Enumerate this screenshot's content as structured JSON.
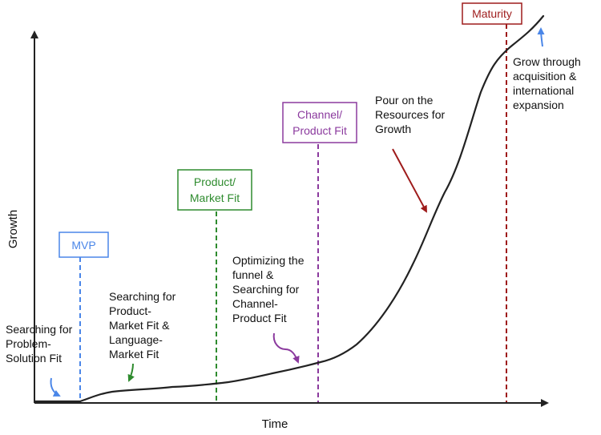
{
  "axes": {
    "x_label": "Time",
    "y_label": "Growth"
  },
  "milestones": [
    {
      "id": "mvp",
      "lines": [
        "MVP"
      ],
      "color": "#4a86e8"
    },
    {
      "id": "product-market-fit",
      "lines": [
        "Product/",
        "Market Fit"
      ],
      "color": "#2e8b2e"
    },
    {
      "id": "channel-product-fit",
      "lines": [
        "Channel/",
        "Product Fit"
      ],
      "color": "#8b3a9e"
    },
    {
      "id": "maturity",
      "lines": [
        "Maturity"
      ],
      "color": "#9e1b1b"
    }
  ],
  "annotations": [
    {
      "id": "problem-solution",
      "lines": [
        "Searching for",
        "Problem-",
        "Solution Fit"
      ],
      "arrow_color": "#4a86e8"
    },
    {
      "id": "product-market",
      "lines": [
        "Searching for",
        "Product-",
        "Market Fit &",
        "Language-",
        "Market Fit"
      ],
      "arrow_color": "#2e8b2e"
    },
    {
      "id": "funnel",
      "lines": [
        "Optimizing the",
        "funnel &",
        "Searching for",
        "Channel-",
        "Product Fit"
      ],
      "arrow_color": "#8b3a9e"
    },
    {
      "id": "resources",
      "lines": [
        "Pour on the",
        "Resources for",
        "Growth"
      ],
      "arrow_color": "#9e1b1b"
    },
    {
      "id": "acquisition",
      "lines": [
        "Grow through",
        "acquisition &",
        "international",
        "expansion"
      ],
      "arrow_color": "#4a86e8"
    }
  ],
  "curve_color": "#222222"
}
